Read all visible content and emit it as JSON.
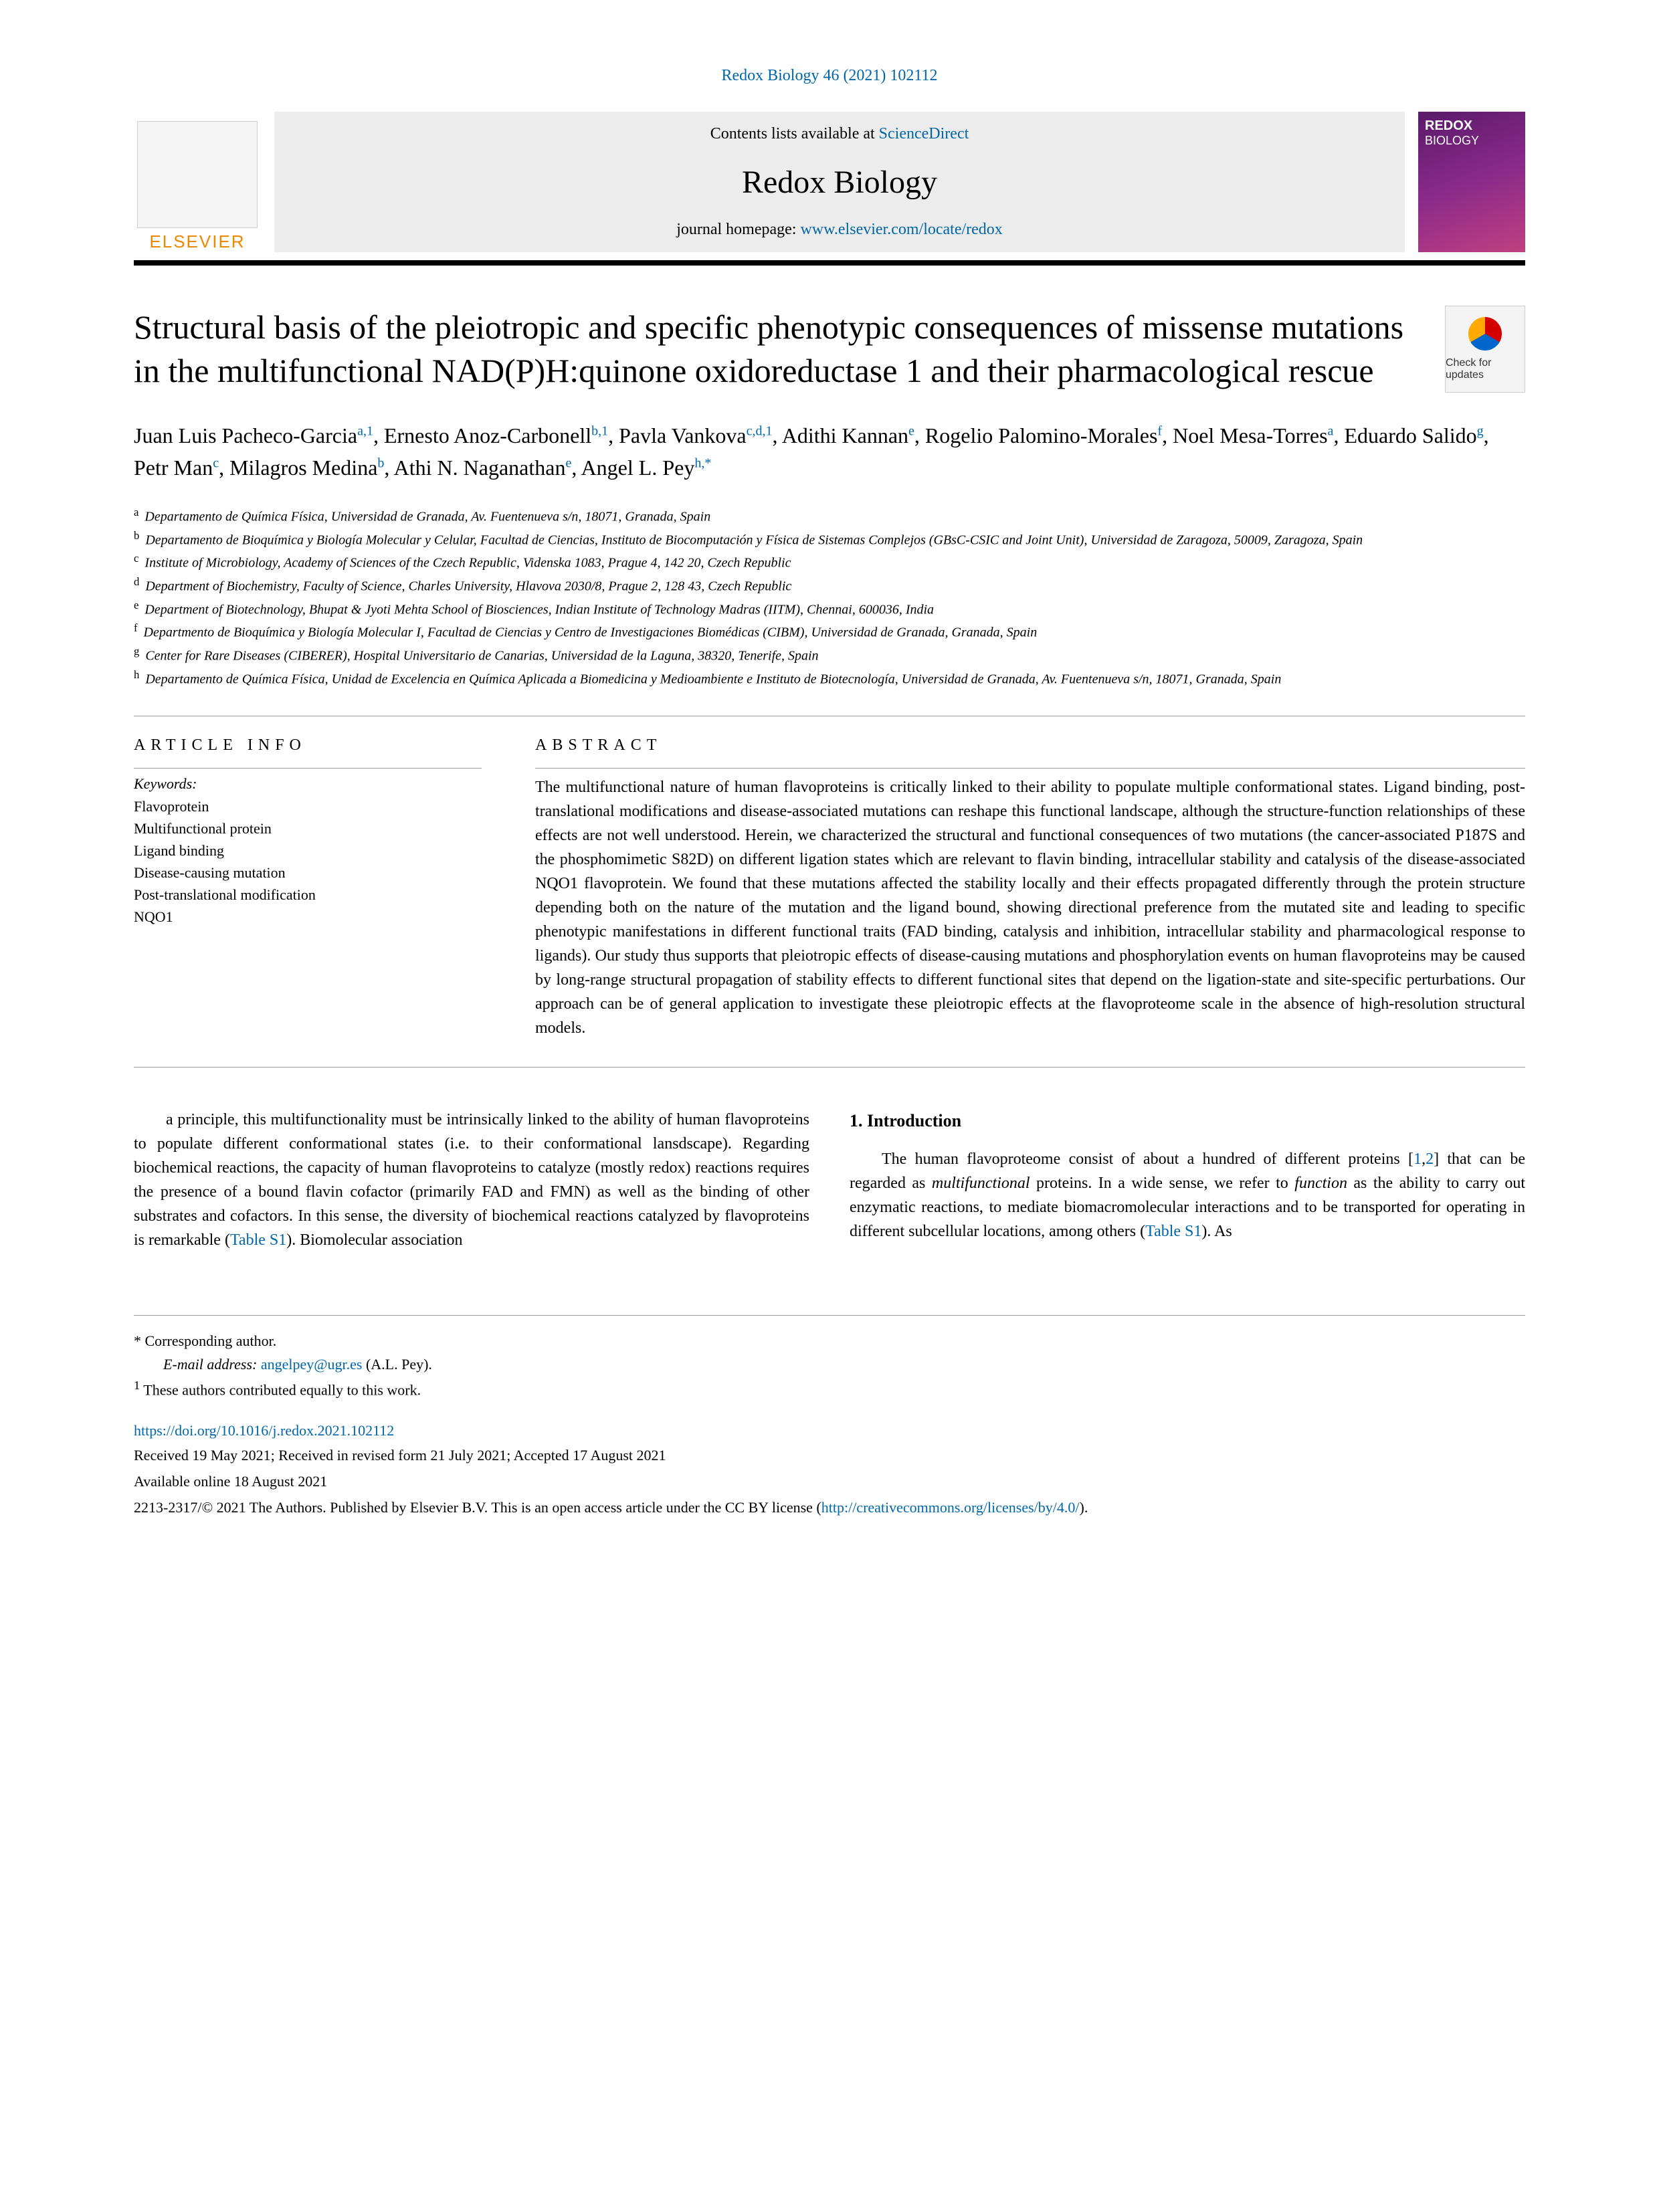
{
  "journal_ref": "Redox Biology 46 (2021) 102112",
  "header": {
    "elsevier": "ELSEVIER",
    "contents_prefix": "Contents lists available at ",
    "contents_link": "ScienceDirect",
    "journal_name": "Redox Biology",
    "homepage_prefix": "journal homepage: ",
    "homepage_link": "www.elsevier.com/locate/redox",
    "cover_label_1": "REDOX",
    "cover_label_2": "BIOLOGY",
    "updates_label": "Check for updates"
  },
  "title": "Structural basis of the pleiotropic and specific phenotypic consequences of missense mutations in the multifunctional NAD(P)H:quinone oxidoreductase 1 and their pharmacological rescue",
  "authors_html": "Juan Luis Pacheco-Garcia<sup>a,1</sup>, Ernesto Anoz-Carbonell<sup>b,1</sup>, Pavla Vankova<sup>c,d,1</sup>, Adithi Kannan<sup>e</sup>, Rogelio Palomino-Morales<sup>f</sup>, Noel Mesa-Torres<sup>a</sup>, Eduardo Salido<sup>g</sup>, Petr Man<sup>c</sup>, Milagros Medina<sup>b</sup>, Athi N. Naganathan<sup>e</sup>, Angel L. Pey<sup>h,<span class='star'>*</span></sup>",
  "affiliations": [
    {
      "key": "a",
      "text": "Departamento de Química Física, Universidad de Granada, Av. Fuentenueva s/n, 18071, Granada, Spain"
    },
    {
      "key": "b",
      "text": "Departamento de Bioquímica y Biología Molecular y Celular, Facultad de Ciencias, Instituto de Biocomputación y Física de Sistemas Complejos (GBsC-CSIC and Joint Unit), Universidad de Zaragoza, 50009, Zaragoza, Spain"
    },
    {
      "key": "c",
      "text": "Institute of Microbiology, Academy of Sciences of the Czech Republic, Videnska 1083, Prague 4, 142 20, Czech Republic"
    },
    {
      "key": "d",
      "text": "Department of Biochemistry, Faculty of Science, Charles University, Hlavova 2030/8, Prague 2, 128 43, Czech Republic"
    },
    {
      "key": "e",
      "text": "Department of Biotechnology, Bhupat & Jyoti Mehta School of Biosciences, Indian Institute of Technology Madras (IITM), Chennai, 600036, India"
    },
    {
      "key": "f",
      "text": "Departmento de Bioquímica y Biología Molecular I, Facultad de Ciencias y Centro de Investigaciones Biomédicas (CIBM), Universidad de Granada, Granada, Spain"
    },
    {
      "key": "g",
      "text": "Center for Rare Diseases (CIBERER), Hospital Universitario de Canarias, Universidad de la Laguna, 38320, Tenerife, Spain"
    },
    {
      "key": "h",
      "text": "Departamento de Química Física, Unidad de Excelencia en Química Aplicada a Biomedicina y Medioambiente e Instituto de Biotecnología, Universidad de Granada, Av. Fuentenueva s/n, 18071, Granada, Spain"
    }
  ],
  "info_heading": "ARTICLE INFO",
  "abstract_heading": "ABSTRACT",
  "keywords_label": "Keywords:",
  "keywords": [
    "Flavoprotein",
    "Multifunctional protein",
    "Ligand binding",
    "Disease-causing mutation",
    "Post-translational modification",
    "NQO1"
  ],
  "abstract": "The multifunctional nature of human flavoproteins is critically linked to their ability to populate multiple conformational states. Ligand binding, post-translational modifications and disease-associated mutations can reshape this functional landscape, although the structure-function relationships of these effects are not well understood. Herein, we characterized the structural and functional consequences of two mutations (the cancer-associated P187S and the phosphomimetic S82D) on different ligation states which are relevant to flavin binding, intracellular stability and catalysis of the disease-associated NQO1 flavoprotein. We found that these mutations affected the stability locally and their effects propagated differently through the protein structure depending both on the nature of the mutation and the ligand bound, showing directional preference from the mutated site and leading to specific phenotypic manifestations in different functional traits (FAD binding, catalysis and inhibition, intracellular stability and pharmacological response to ligands). Our study thus supports that pleiotropic effects of disease-causing mutations and phosphorylation events on human flavoproteins may be caused by long-range structural propagation of stability effects to different functional sites that depend on the ligation-state and site-specific perturbations. Our approach can be of general application to investigate these pleiotropic effects at the flavoproteome scale in the absence of high-resolution structural models.",
  "section1_heading": "1. Introduction",
  "intro_col1": "The human flavoproteome consist of about a hundred of different proteins [1,2] that can be regarded as multifunctional proteins. In a wide sense, we refer to function as the ability to carry out enzymatic reactions, to mediate biomacromolecular interactions and to be transported for operating in different subcellular locations, among others (Table S1). As",
  "intro_col2": "a principle, this multifunctionality must be intrinsically linked to the ability of human flavoproteins to populate different conformational states (i.e. to their conformational lansdscape). Regarding biochemical reactions, the capacity of human flavoproteins to catalyze (mostly redox) reactions requires the presence of a bound flavin cofactor (primarily FAD and FMN) as well as the binding of other substrates and cofactors. In this sense, the diversity of biochemical reactions catalyzed by flavoproteins is remarkable (Table S1). Biomolecular association",
  "footer": {
    "corresponding": "* Corresponding author.",
    "email_label": "E-mail address: ",
    "email": "angelpey@ugr.es",
    "email_name": " (A.L. Pey).",
    "note1": "These authors contributed equally to this work.",
    "doi": "https://doi.org/10.1016/j.redox.2021.102112",
    "received": "Received 19 May 2021; Received in revised form 21 July 2021; Accepted 17 August 2021",
    "available": "Available online 18 August 2021",
    "copyright_pre": "2213-2317/© 2021 The Authors. Published by Elsevier B.V. This is an open access article under the CC BY license (",
    "cc_link": "http://creativecommons.org/licenses/by/4.0/",
    "copyright_post": ")."
  },
  "colors": {
    "link": "#0066aa",
    "elsevier": "#ee8800",
    "black": "#000000",
    "rule": "#999999"
  }
}
